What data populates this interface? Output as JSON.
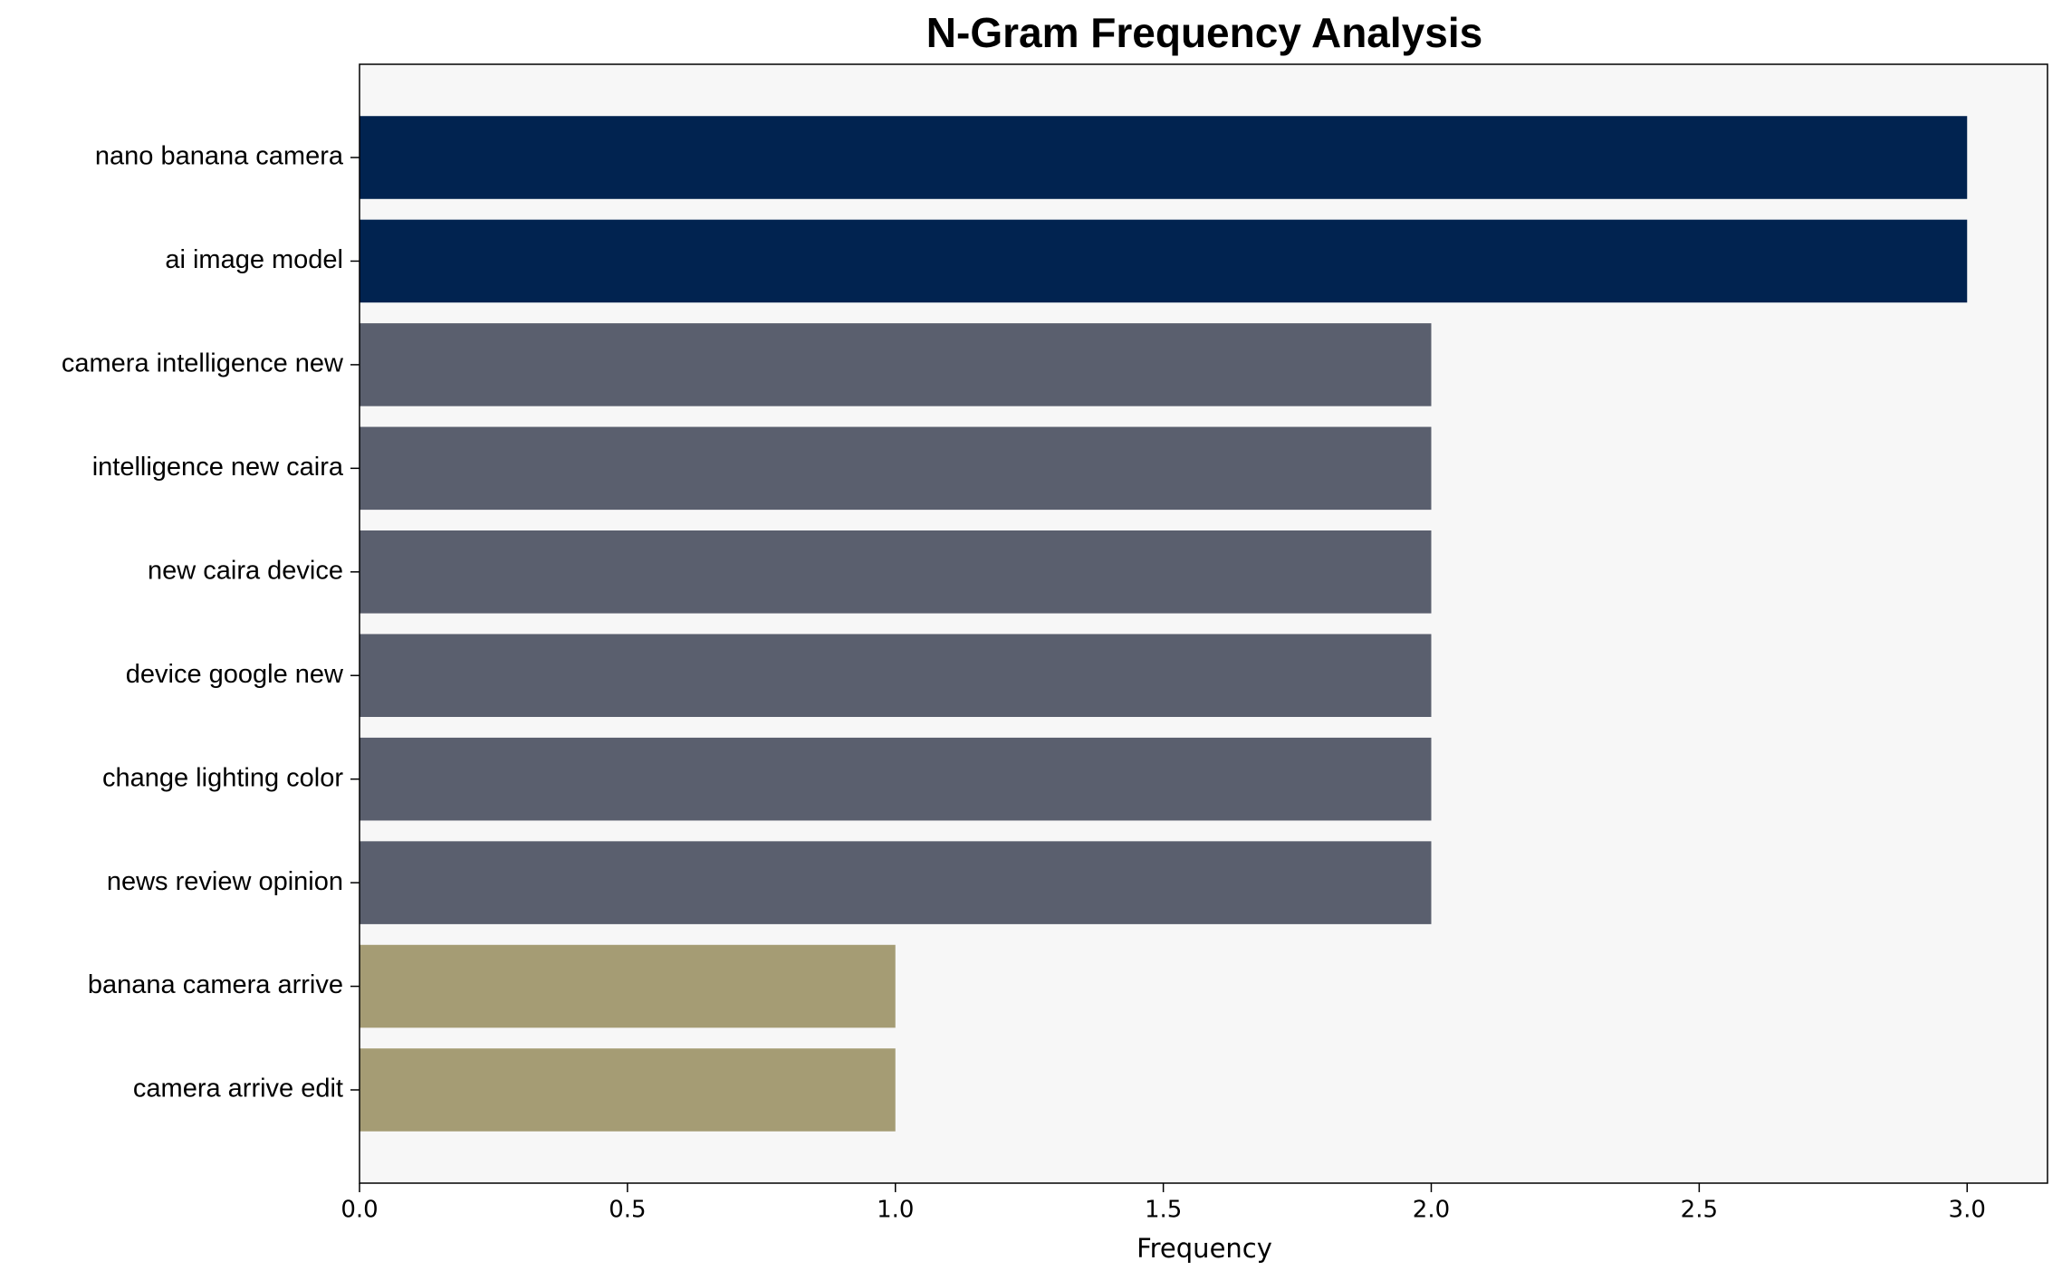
{
  "chart_data": {
    "type": "barh",
    "title": "N-Gram Frequency Analysis",
    "xlabel": "Frequency",
    "categories": [
      "nano banana camera",
      "ai image model",
      "camera intelligence new",
      "intelligence new caira",
      "new caira device",
      "device google new",
      "change lighting color",
      "news review opinion",
      "banana camera arrive",
      "camera arrive edit"
    ],
    "values": [
      3,
      3,
      2,
      2,
      2,
      2,
      2,
      2,
      1,
      1
    ],
    "colors": [
      "#012350",
      "#012350",
      "#5a5f6e",
      "#5a5f6e",
      "#5a5f6e",
      "#5a5f6e",
      "#5a5f6e",
      "#5a5f6e",
      "#a59c74",
      "#a59c74"
    ],
    "xlim": [
      0,
      3.15
    ],
    "xticks": [
      {
        "value": 0,
        "label": "0.0"
      },
      0.5,
      {
        "value": 1,
        "label": "1.0"
      },
      1.5,
      {
        "value": 2,
        "label": "2.0"
      },
      2.5,
      {
        "value": 3,
        "label": "3.0"
      }
    ],
    "grid": false
  }
}
